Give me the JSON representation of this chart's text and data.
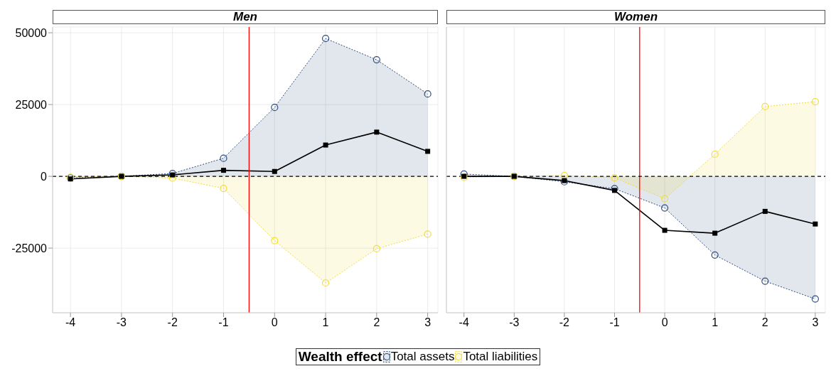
{
  "chart_data": [
    {
      "type": "area",
      "title": "Men",
      "x": [
        -4,
        -3,
        -2,
        -1,
        0,
        1,
        2,
        3
      ],
      "xlim": [
        -4.35,
        3.2
      ],
      "xticks": [
        -4,
        -3,
        -2,
        -1,
        0,
        1,
        2,
        3
      ],
      "ylim": [
        -47500,
        52000
      ],
      "yticks": [
        -25000,
        0,
        25000,
        50000
      ],
      "grid": true,
      "marker": "circle",
      "line_style": "dotted",
      "legend": "bottom",
      "legend_title": "Wealth effect",
      "series": [
        {
          "name": "Total assets",
          "color": "#2f4b7c",
          "values": [
            -500,
            0,
            1000,
            6300,
            24000,
            48000,
            40600,
            28700
          ]
        },
        {
          "name": "Total liabilities",
          "color": "#f2dc3c",
          "values": [
            -300,
            0,
            -600,
            -4200,
            -22400,
            -37100,
            -25200,
            -20100
          ]
        },
        {
          "type": "line",
          "color": "#000000",
          "marker": "square",
          "line_style": "solid",
          "values": [
            -900,
            0,
            500,
            2100,
            1700,
            10900,
            15400,
            8700
          ]
        }
      ],
      "ref_lines": [
        {
          "axis": "x",
          "value": -0.5,
          "color": "#ff0000",
          "line_style": "solid"
        },
        {
          "axis": "y",
          "value": 0,
          "color": "#000000",
          "line_style": "dashed"
        }
      ]
    },
    {
      "type": "area",
      "title": "Women",
      "x": [
        -4,
        -3,
        -2,
        -1,
        0,
        1,
        2,
        3
      ],
      "xlim": [
        -4.35,
        3.2
      ],
      "xticks": [
        -4,
        -3,
        -2,
        -1,
        0,
        1,
        2,
        3
      ],
      "ylim": [
        -47500,
        52000
      ],
      "yticks": [
        -25000,
        0,
        25000,
        50000
      ],
      "tick_labels": "x",
      "grid": true,
      "marker": "circle",
      "line_style": "dotted",
      "series": [
        {
          "color": "#2f4b7c",
          "values": [
            800,
            0,
            -1900,
            -4300,
            -11000,
            -27400,
            -36500,
            -42700
          ]
        },
        {
          "color": "#f2dc3c",
          "values": [
            -400,
            0,
            300,
            -500,
            -7800,
            7700,
            24300,
            26000
          ]
        },
        {
          "type": "line",
          "color": "#000000",
          "marker": "square",
          "line_style": "solid",
          "values": [
            0,
            0,
            -1500,
            -4900,
            -18800,
            -19800,
            -12200,
            -16600
          ]
        }
      ],
      "ref_lines": [
        {
          "axis": "x",
          "value": -0.5,
          "color": "#ff0000",
          "line_style": "solid"
        },
        {
          "axis": "y",
          "value": 0,
          "color": "#000000",
          "line_style": "dashed"
        }
      ]
    }
  ]
}
